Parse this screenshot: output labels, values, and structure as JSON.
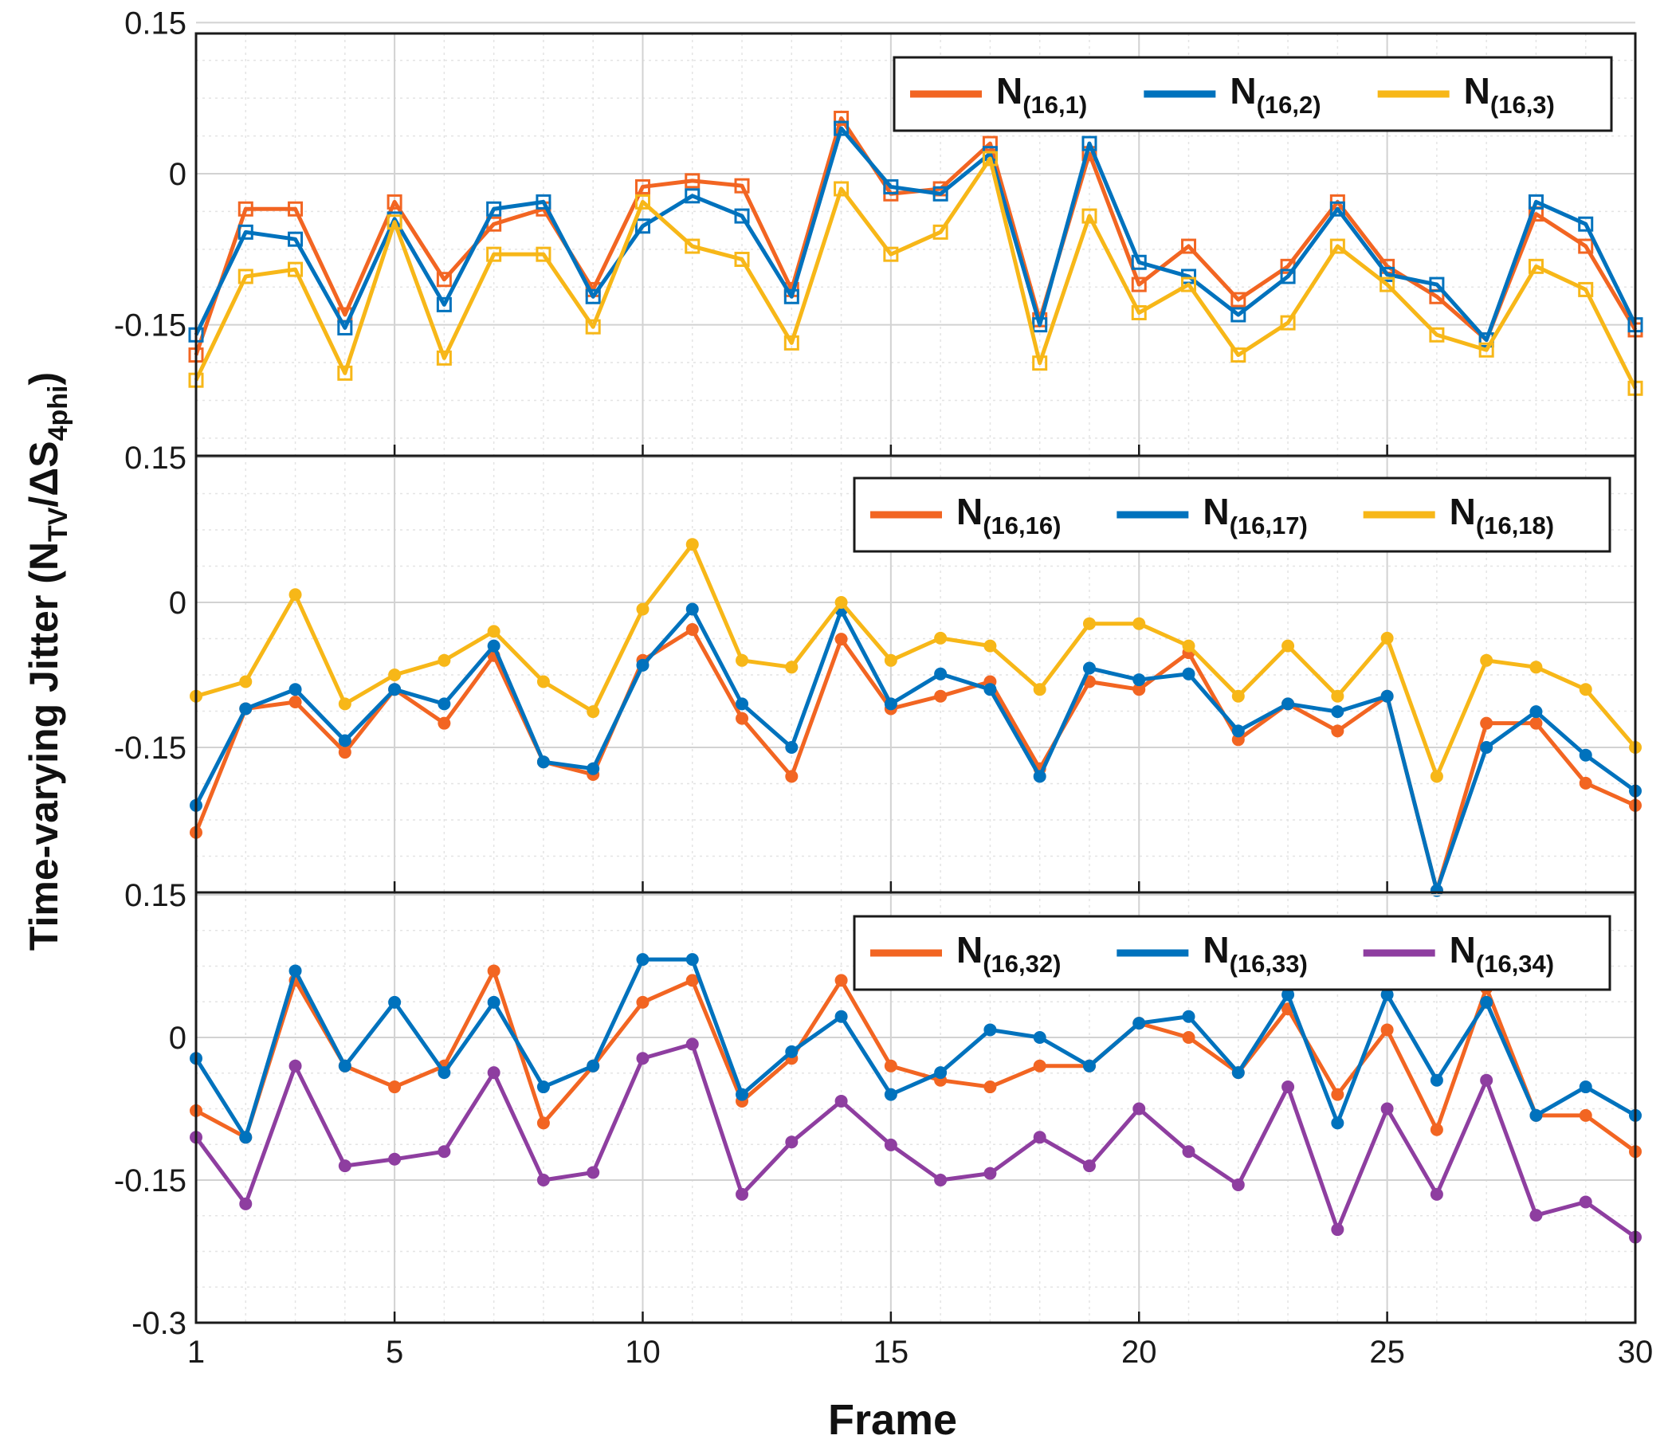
{
  "figure": {
    "ylabel_main": "Time-varying Jitter (N",
    "ylabel_sub1": "TV",
    "ylabel_mid": "/ΔS",
    "ylabel_sub2": "4phi",
    "ylabel_end": ")",
    "xlabel": "Frame"
  },
  "chart_data": [
    {
      "type": "line",
      "panel": "top",
      "marker": "square",
      "xlim": [
        1,
        30
      ],
      "ylim": [
        -0.28,
        0.15
      ],
      "yticks": [
        0.15,
        0,
        -0.15
      ],
      "ytick_labels": [
        "0.15",
        "0",
        "-0.15"
      ],
      "xticks": [
        1,
        5,
        10,
        15,
        20,
        25,
        30
      ],
      "xtick_labels": [],
      "legend_position": "top-right",
      "series": [
        {
          "name": "N",
          "sub": "(16,1)",
          "color": "#f26522",
          "values": [
            -0.18,
            -0.035,
            -0.035,
            -0.14,
            -0.028,
            -0.105,
            -0.05,
            -0.035,
            -0.115,
            -0.013,
            -0.007,
            -0.012,
            -0.115,
            0.055,
            -0.02,
            -0.015,
            0.03,
            -0.145,
            0.02,
            -0.11,
            -0.072,
            -0.125,
            -0.092,
            -0.028,
            -0.092,
            -0.122,
            -0.165,
            -0.04,
            -0.072,
            -0.155
          ]
        },
        {
          "name": "N",
          "sub": "(16,2)",
          "color": "#0072bd",
          "values": [
            -0.16,
            -0.058,
            -0.065,
            -0.153,
            -0.045,
            -0.13,
            -0.035,
            -0.028,
            -0.122,
            -0.052,
            -0.022,
            -0.042,
            -0.122,
            0.045,
            -0.013,
            -0.02,
            0.02,
            -0.15,
            0.03,
            -0.088,
            -0.102,
            -0.14,
            -0.102,
            -0.035,
            -0.1,
            -0.11,
            -0.165,
            -0.028,
            -0.05,
            -0.15
          ]
        },
        {
          "name": "N",
          "sub": "(16,3)",
          "color": "#f7b718",
          "values": [
            -0.205,
            -0.102,
            -0.095,
            -0.198,
            -0.048,
            -0.183,
            -0.08,
            -0.08,
            -0.152,
            -0.028,
            -0.072,
            -0.085,
            -0.168,
            -0.015,
            -0.08,
            -0.058,
            0.015,
            -0.188,
            -0.042,
            -0.138,
            -0.11,
            -0.18,
            -0.148,
            -0.072,
            -0.11,
            -0.16,
            -0.175,
            -0.092,
            -0.115,
            -0.213
          ]
        }
      ]
    },
    {
      "type": "line",
      "panel": "middle",
      "marker": "circle",
      "xlim": [
        1,
        30
      ],
      "ylim": [
        -0.3,
        0.15
      ],
      "yticks": [
        0.15,
        0,
        -0.15
      ],
      "ytick_labels": [
        "0.15",
        "0",
        "-0.15"
      ],
      "xticks": [
        1,
        5,
        10,
        15,
        20,
        25,
        30
      ],
      "xtick_labels": [],
      "legend_position": "top-right",
      "series": [
        {
          "name": "N",
          "sub": "(16,16)",
          "color": "#f26522",
          "values": [
            -0.238,
            -0.11,
            -0.103,
            -0.155,
            -0.09,
            -0.125,
            -0.055,
            -0.165,
            -0.178,
            -0.06,
            -0.028,
            -0.12,
            -0.18,
            -0.038,
            -0.11,
            -0.097,
            -0.082,
            -0.172,
            -0.082,
            -0.09,
            -0.052,
            -0.142,
            -0.105,
            -0.133,
            -0.097,
            -0.298,
            -0.125,
            -0.125,
            -0.187,
            -0.21
          ]
        },
        {
          "name": "N",
          "sub": "(16,17)",
          "color": "#0072bd",
          "values": [
            -0.21,
            -0.11,
            -0.09,
            -0.143,
            -0.09,
            -0.105,
            -0.045,
            -0.165,
            -0.172,
            -0.065,
            -0.007,
            -0.105,
            -0.15,
            -0.008,
            -0.105,
            -0.074,
            -0.09,
            -0.18,
            -0.068,
            -0.08,
            -0.074,
            -0.133,
            -0.105,
            -0.113,
            -0.097,
            -0.298,
            -0.15,
            -0.113,
            -0.158,
            -0.195
          ]
        },
        {
          "name": "N",
          "sub": "(16,18)",
          "color": "#f7b718",
          "values": [
            -0.097,
            -0.082,
            0.008,
            -0.105,
            -0.075,
            -0.06,
            -0.03,
            -0.082,
            -0.113,
            -0.007,
            0.06,
            -0.06,
            -0.067,
            0.0,
            -0.06,
            -0.037,
            -0.045,
            -0.09,
            -0.022,
            -0.022,
            -0.045,
            -0.097,
            -0.045,
            -0.097,
            -0.037,
            -0.18,
            -0.06,
            -0.067,
            -0.09,
            -0.15
          ]
        }
      ]
    },
    {
      "type": "line",
      "panel": "bottom",
      "marker": "circle",
      "xlim": [
        1,
        30
      ],
      "ylim": [
        -0.3,
        0.15
      ],
      "yticks": [
        0.15,
        0,
        -0.15,
        -0.3
      ],
      "ytick_labels": [
        "0.15",
        "0",
        "-0.15",
        "-0.3"
      ],
      "xticks": [
        1,
        5,
        10,
        15,
        20,
        25,
        30
      ],
      "xtick_labels": [
        "1",
        "5",
        "10",
        "15",
        "20",
        "25",
        "30"
      ],
      "legend_position": "top-right",
      "series": [
        {
          "name": "N",
          "sub": "(16,32)",
          "color": "#f26522",
          "values": [
            -0.077,
            -0.105,
            0.06,
            -0.03,
            -0.052,
            -0.03,
            0.07,
            -0.09,
            -0.03,
            0.037,
            0.06,
            -0.067,
            -0.022,
            0.06,
            -0.03,
            -0.045,
            -0.052,
            -0.03,
            -0.03,
            0.015,
            0.0,
            -0.037,
            0.03,
            -0.06,
            0.008,
            -0.097,
            0.052,
            -0.082,
            -0.082,
            -0.12
          ]
        },
        {
          "name": "N",
          "sub": "(16,33)",
          "color": "#0072bd",
          "values": [
            -0.022,
            -0.105,
            0.07,
            -0.03,
            0.037,
            -0.037,
            0.037,
            -0.052,
            -0.03,
            0.082,
            0.082,
            -0.06,
            -0.015,
            0.022,
            -0.06,
            -0.037,
            0.008,
            0.0,
            -0.03,
            0.015,
            0.022,
            -0.037,
            0.045,
            -0.09,
            0.045,
            -0.045,
            0.037,
            -0.082,
            -0.052,
            -0.082
          ]
        },
        {
          "name": "N",
          "sub": "(16,34)",
          "color": "#8e3ea0",
          "values": [
            -0.105,
            -0.175,
            -0.03,
            -0.135,
            -0.128,
            -0.12,
            -0.037,
            -0.15,
            -0.142,
            -0.022,
            -0.007,
            -0.165,
            -0.11,
            -0.067,
            -0.113,
            -0.15,
            -0.143,
            -0.105,
            -0.135,
            -0.075,
            -0.12,
            -0.155,
            -0.052,
            -0.202,
            -0.075,
            -0.165,
            -0.045,
            -0.187,
            -0.173,
            -0.21
          ]
        }
      ]
    }
  ]
}
